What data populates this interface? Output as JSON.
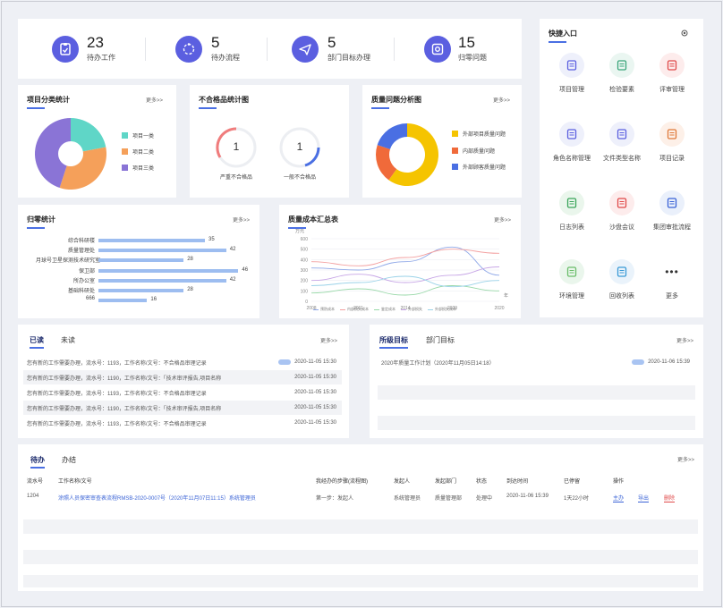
{
  "stats": [
    {
      "value": "23",
      "label": "待办工作",
      "icon": "clipboard-icon"
    },
    {
      "value": "5",
      "label": "待办流程",
      "icon": "process-icon"
    },
    {
      "value": "5",
      "label": "部门目标办理",
      "icon": "send-icon"
    },
    {
      "value": "15",
      "label": "归零问题",
      "icon": "target-icon"
    }
  ],
  "project_stats": {
    "title": "项目分类统计",
    "more": "更多>>",
    "chart_data": {
      "type": "pie",
      "categories": [
        "项目一类",
        "项目二类",
        "项目三类"
      ],
      "values": [
        22,
        33,
        45
      ],
      "colors": [
        "#5fd6c7",
        "#f5a05a",
        "#8a74d6"
      ]
    }
  },
  "nonconform": {
    "title": "不合格品统计图",
    "items": [
      {
        "value": "1",
        "label": "严重不合格品",
        "color": "#f07c7c"
      },
      {
        "value": "1",
        "label": "一般不合格品",
        "color": "#4a6fe3"
      }
    ]
  },
  "quality": {
    "title": "质量问题分析图",
    "more": "更多>>",
    "chart_data": {
      "type": "pie",
      "categories": [
        "外部项目质量问题",
        "内部质量问题",
        "外部顾客质量问题"
      ],
      "values": [
        60,
        20,
        20
      ],
      "colors": [
        "#f5c400",
        "#f06a3a",
        "#4a6fe3"
      ]
    }
  },
  "zero_stats": {
    "title": "归零统计",
    "more": "更多>>",
    "chart_data": {
      "type": "bar",
      "categories": [
        "综合科研楼",
        "质量管理处",
        "月球号卫星探测技术研究室",
        "保卫部",
        "所办公室",
        "基础科研处",
        "666"
      ],
      "values": [
        35,
        42,
        28,
        46,
        42,
        28,
        16
      ],
      "xlim": [
        0,
        50
      ]
    }
  },
  "cost": {
    "title": "质量成本汇总表",
    "more": "更多>>",
    "unit": "万元",
    "xlabel": "年",
    "chart_data": {
      "type": "line",
      "x": [
        "2008",
        "2011",
        "2014",
        "2029",
        "2020"
      ],
      "ylim": [
        0,
        600
      ],
      "yticks": [
        "0",
        "100",
        "200",
        "300",
        "400",
        "500",
        "600"
      ],
      "series": [
        {
          "name": "预防成本",
          "color": "#8fa8e8",
          "values": [
            320,
            300,
            380,
            520,
            250
          ]
        },
        {
          "name": "内部损失成本",
          "color": "#f3a0a0",
          "values": [
            380,
            340,
            420,
            500,
            460
          ]
        },
        {
          "name": "鉴定成本",
          "color": "#98d8a8",
          "values": [
            80,
            120,
            60,
            150,
            100
          ]
        },
        {
          "name": "外部损失",
          "color": "#c7a6e6",
          "values": [
            200,
            260,
            180,
            250,
            330
          ]
        },
        {
          "name": "外部损失成本",
          "color": "#9ad2e8",
          "values": [
            150,
            180,
            240,
            140,
            200
          ]
        }
      ]
    }
  },
  "quick": {
    "title": "快捷入口",
    "items": [
      {
        "label": "项目管理",
        "icon": "document-icon"
      },
      {
        "label": "检验要素",
        "icon": "shield-icon"
      },
      {
        "label": "评审管理",
        "icon": "review-icon"
      },
      {
        "label": "角色名称管理",
        "icon": "id-card-icon"
      },
      {
        "label": "文件类型名称",
        "icon": "file-type-icon"
      },
      {
        "label": "项目记录",
        "icon": "pencil-icon"
      },
      {
        "label": "日志列表",
        "icon": "log-icon"
      },
      {
        "label": "沙盘会议",
        "icon": "meeting-icon"
      },
      {
        "label": "集团审批流程",
        "icon": "plane-icon"
      },
      {
        "label": "环境管理",
        "icon": "leaf-icon"
      },
      {
        "label": "回收列表",
        "icon": "recycle-icon"
      },
      {
        "label": "更多",
        "icon": "more-dots-icon"
      }
    ]
  },
  "notify": {
    "tabs": [
      "已读",
      "未读"
    ],
    "more": "更多>>",
    "rows": [
      {
        "text": "您有新的工作需要办理，流水号：1193，工作名称/文号：不合格品审理记录",
        "badge": true,
        "time": "2020-11-05 15:30"
      },
      {
        "text": "您有新的工作需要办理，流水号：1190，工作名称/文号：「技术审评报告,项目名称",
        "badge": false,
        "time": "2020-11-05 15:30"
      },
      {
        "text": "您有新的工作需要办理，流水号：1193，工作名称/文号：不合格品审理记录",
        "badge": false,
        "time": "2020-11-05 15:30"
      },
      {
        "text": "您有新的工作需要办理，流水号：1190，工作名称/文号：「技术审评报告,项目名称",
        "badge": false,
        "time": "2020-11-05 15:30"
      },
      {
        "text": "您有新的工作需要办理，流水号：1193，工作名称/文号：不合格品审理记录",
        "badge": false,
        "time": "2020-11-05 15:30"
      }
    ]
  },
  "goals": {
    "tabs": [
      "所级目标",
      "部门目标"
    ],
    "more": "更多>>",
    "rows": [
      {
        "text": "2020年质量工作计划（2020年11月05日14:18）",
        "time": "2020-11-06 15:39"
      }
    ]
  },
  "todo": {
    "tabs": [
      "待办",
      "办结"
    ],
    "more": "更多>>",
    "headers": [
      "流水号",
      "工作名称/文号",
      "我经办的步骤(流程图)",
      "发起人",
      "发起部门",
      "状态",
      "到达时间",
      "已停留",
      "操作"
    ],
    "rows": [
      {
        "id": "1204",
        "name": "涂照人员保密审查表流程RMSB-2020-0007号（2020年11月07日11:15）系统管理员",
        "step": "第一步：发起人",
        "initiator": "系统管理员",
        "dept": "质量管理部",
        "status": "处理中",
        "arrive": "2020-11-06 15:39",
        "stay": "1天22小时",
        "ops": [
          "主办",
          "导出",
          "删除"
        ]
      }
    ]
  }
}
